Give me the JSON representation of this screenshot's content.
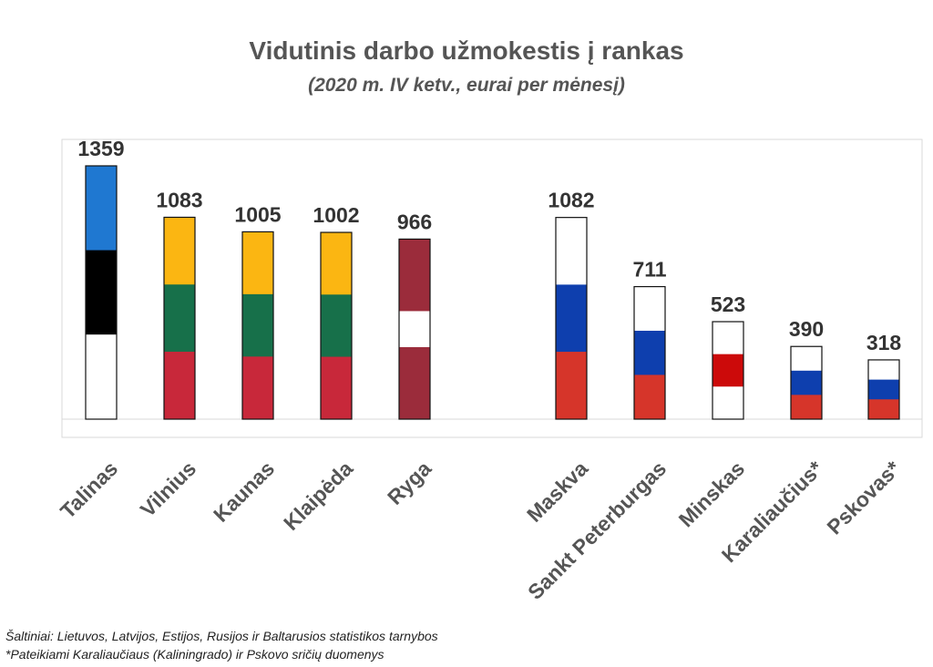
{
  "chart_data": {
    "type": "bar",
    "title": "Vidutinis darbo užmokestis į rankas",
    "subtitle": "(2020 m. IV ketv., eurai per mėnesį)",
    "xlabel": "",
    "ylabel": "",
    "ylim": [
      0,
      1500
    ],
    "grid": false,
    "legend": "none",
    "categories": [
      "Talinas",
      "Vilnius",
      "Kaunas",
      "Klaipėda",
      "Ryga",
      "Maskva",
      "Sankt Peterburgas",
      "Minskas",
      "Karaliaučius*",
      "Pskovas*"
    ],
    "values": [
      1359,
      1083,
      1005,
      1002,
      966,
      1082,
      711,
      523,
      390,
      318
    ],
    "data_labels": [
      "1359",
      "1083",
      "1005",
      "1002",
      "966",
      "1082",
      "711",
      "523",
      "390",
      "318"
    ],
    "flag_colors": [
      [
        "#1f78d1",
        "#000000",
        "#ffffff"
      ],
      [
        "#fbb612",
        "#17704a",
        "#c8283a"
      ],
      [
        "#fbb612",
        "#17704a",
        "#c8283a"
      ],
      [
        "#fbb612",
        "#17704a",
        "#c8283a"
      ],
      [
        "#9b2c3b",
        "#ffffff",
        "#9b2c3b"
      ],
      [
        "#ffffff",
        "#0e3fae",
        "#d6352a"
      ],
      [
        "#ffffff",
        "#0e3fae",
        "#d6352a"
      ],
      [
        "#ffffff",
        "#cc0a0a",
        "#ffffff"
      ],
      [
        "#ffffff",
        "#0e3fae",
        "#d6352a"
      ],
      [
        "#ffffff",
        "#0e3fae",
        "#d6352a"
      ]
    ],
    "flag_fractions": [
      [
        0.333,
        0.333,
        0.334
      ],
      [
        0.333,
        0.333,
        0.334
      ],
      [
        0.333,
        0.333,
        0.334
      ],
      [
        0.333,
        0.333,
        0.334
      ],
      [
        0.4,
        0.2,
        0.4
      ],
      [
        0.333,
        0.333,
        0.334
      ],
      [
        0.333,
        0.333,
        0.334
      ],
      [
        0.333,
        0.333,
        0.334
      ],
      [
        0.333,
        0.333,
        0.334
      ],
      [
        0.333,
        0.333,
        0.334
      ]
    ]
  },
  "notes": {
    "sources": "Šaltiniai: Lietuvos, Latvijos, Estijos, Rusijos ir Baltarusios statistikos tarnybos",
    "footnote": "*Pateikiami Karaliaučiaus (Kaliningrado) ir Pskovo sričių duomenys"
  }
}
